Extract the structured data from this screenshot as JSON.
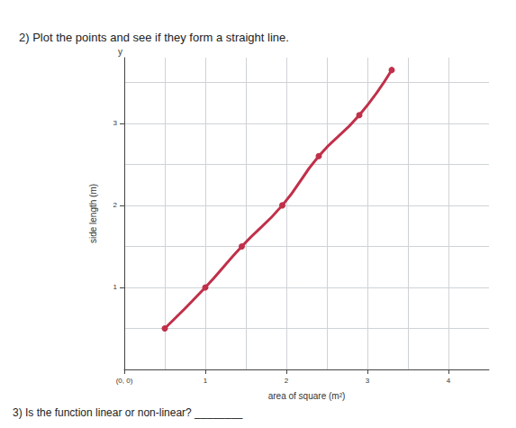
{
  "chart_data": {
    "type": "line",
    "title": "2) Plot the points and see if they form a straight line.",
    "x_label": "area of square (m²)",
    "y_label": "side length (m)",
    "annotations": [
      "y",
      "3) Is the function linear or non-linear? ________"
    ],
    "x": [
      0.5,
      1,
      1.45,
      1.95,
      2.4,
      2.9,
      3.3
    ],
    "values": [
      0.5,
      1,
      1.5,
      2,
      2.6,
      3.1,
      3.65
    ],
    "color": "#c0304a",
    "marker": "circle",
    "xlim": [
      0,
      4.5
    ],
    "xticks": [
      {
        "value": 0,
        "label": "(0, 0)"
      },
      1,
      2,
      3,
      4
    ],
    "ylim": [
      0,
      3.8
    ],
    "yticks": [
      1,
      2,
      3
    ],
    "grid": true
  }
}
